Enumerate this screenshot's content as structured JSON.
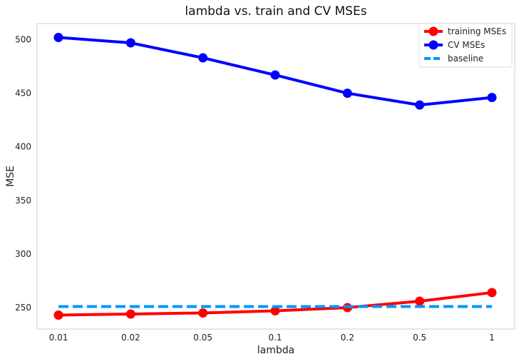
{
  "chart_data": {
    "type": "line",
    "title": "lambda vs. train and CV MSEs",
    "xlabel": "lambda",
    "ylabel": "MSE",
    "categories": [
      "0.01",
      "0.02",
      "0.05",
      "0.1",
      "0.2",
      "0.5",
      "1"
    ],
    "yticks": [
      250,
      300,
      350,
      400,
      450,
      500
    ],
    "ylim": [
      230,
      515
    ],
    "grid": false,
    "legend_position": "top-right",
    "series": [
      {
        "name": "training MSEs",
        "color": "#ff0000",
        "style": "solid",
        "marker": "circle",
        "values": [
          243,
          244,
          245,
          247,
          250,
          256,
          264
        ]
      },
      {
        "name": "CV MSEs",
        "color": "#0000ff",
        "style": "solid",
        "marker": "circle",
        "values": [
          502,
          497,
          483,
          467,
          450,
          439,
          446
        ]
      },
      {
        "name": "baseline",
        "color": "#0096ff",
        "style": "dashed",
        "marker": "none",
        "values": [
          251,
          251,
          251,
          251,
          251,
          251,
          251
        ]
      }
    ]
  }
}
